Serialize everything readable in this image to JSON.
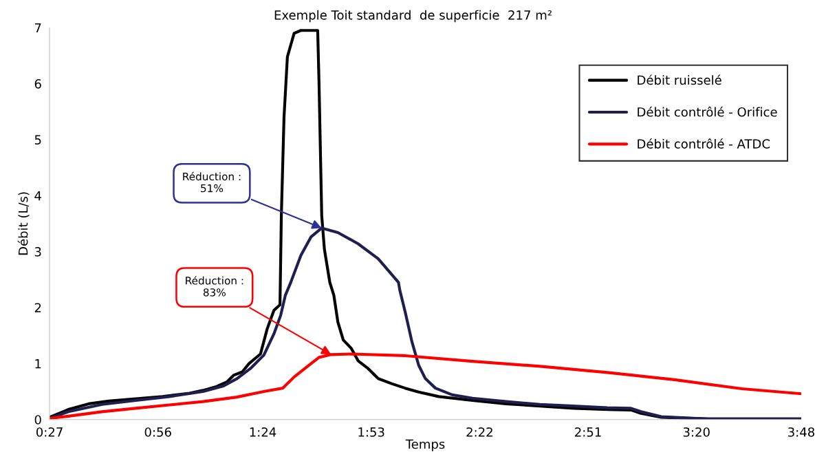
{
  "chart_data": {
    "type": "line",
    "title": "Exemple Toit standard  de superficie  217 m²",
    "xlabel": "Temps",
    "ylabel": "Débit (L/s)",
    "xlim": [
      0.45,
      3.8
    ],
    "ylim": [
      0,
      7
    ],
    "xticks": [
      {
        "value": 0.45,
        "label": "0:27"
      },
      {
        "value": 0.9333,
        "label": "0:56"
      },
      {
        "value": 1.4,
        "label": "1:24"
      },
      {
        "value": 1.8833,
        "label": "1:53"
      },
      {
        "value": 2.3667,
        "label": "2:22"
      },
      {
        "value": 2.85,
        "label": "2:51"
      },
      {
        "value": 3.3333,
        "label": "3:20"
      },
      {
        "value": 3.8,
        "label": "3:48"
      }
    ],
    "yticks": [
      0,
      1,
      2,
      3,
      4,
      5,
      6,
      7
    ],
    "grid": false,
    "legend": "top right",
    "marker": "none",
    "line_style": "solid",
    "series": [
      {
        "name": "Débit ruisselé",
        "color": "#000000",
        "x": [
          0.45,
          0.534,
          0.624,
          0.714,
          0.834,
          0.954,
          1.074,
          1.134,
          1.195,
          1.24,
          1.27,
          1.309,
          1.339,
          1.39,
          1.42,
          1.45,
          1.477,
          1.483,
          1.495,
          1.51,
          1.54,
          1.57,
          1.645,
          1.651,
          1.663,
          1.675,
          1.699,
          1.717,
          1.735,
          1.759,
          1.795,
          1.825,
          1.87,
          1.915,
          1.975,
          2.035,
          2.095,
          2.185,
          2.335,
          2.485,
          2.636,
          2.786,
          2.936,
          3.041,
          3.086,
          3.176,
          3.386,
          3.8
        ],
        "values": [
          0.04,
          0.18,
          0.28,
          0.33,
          0.37,
          0.41,
          0.47,
          0.52,
          0.59,
          0.67,
          0.79,
          0.85,
          1.0,
          1.17,
          1.62,
          1.95,
          2.05,
          3.64,
          5.41,
          6.48,
          6.9,
          6.95,
          6.95,
          6.0,
          3.64,
          3.04,
          2.45,
          2.22,
          1.74,
          1.42,
          1.27,
          1.05,
          0.91,
          0.73,
          0.64,
          0.56,
          0.49,
          0.41,
          0.34,
          0.28,
          0.24,
          0.2,
          0.18,
          0.17,
          0.11,
          0.04,
          0.01,
          0.01
        ]
      },
      {
        "name": "Débit contrôlé - Orifice",
        "color": "#1f1f4f",
        "x": [
          0.45,
          0.534,
          0.684,
          0.834,
          0.984,
          1.134,
          1.225,
          1.285,
          1.345,
          1.405,
          1.45,
          1.48,
          1.501,
          1.525,
          1.57,
          1.615,
          1.663,
          1.735,
          1.825,
          1.915,
          2.005,
          2.011,
          2.035,
          2.065,
          2.095,
          2.125,
          2.17,
          2.245,
          2.335,
          2.485,
          2.636,
          2.786,
          2.936,
          3.041,
          3.086,
          3.176,
          3.386,
          3.8
        ],
        "values": [
          0.02,
          0.14,
          0.27,
          0.34,
          0.41,
          0.5,
          0.6,
          0.73,
          0.91,
          1.15,
          1.53,
          1.86,
          2.22,
          2.45,
          2.93,
          3.26,
          3.42,
          3.34,
          3.14,
          2.87,
          2.45,
          2.31,
          1.92,
          1.39,
          0.97,
          0.73,
          0.56,
          0.44,
          0.38,
          0.32,
          0.27,
          0.24,
          0.21,
          0.2,
          0.14,
          0.05,
          0.01,
          0.01
        ]
      },
      {
        "name": "Débit contrôlé - ATDC",
        "color": "#ff0000",
        "x": [
          0.45,
          0.534,
          0.684,
          0.834,
          0.984,
          1.134,
          1.285,
          1.405,
          1.489,
          1.54,
          1.6,
          1.651,
          1.705,
          1.795,
          2.035,
          2.335,
          2.636,
          2.936,
          3.236,
          3.536,
          3.8
        ],
        "values": [
          0.02,
          0.06,
          0.14,
          0.2,
          0.26,
          0.32,
          0.4,
          0.5,
          0.56,
          0.76,
          0.95,
          1.11,
          1.16,
          1.17,
          1.14,
          1.04,
          0.95,
          0.84,
          0.71,
          0.55,
          0.46
        ]
      }
    ],
    "annotations": [
      {
        "text": "Réduction :\n51%",
        "x": 1.663,
        "y": 3.42
      },
      {
        "text": "Réduction :\n83%",
        "x": 1.705,
        "y": 1.16
      }
    ]
  }
}
